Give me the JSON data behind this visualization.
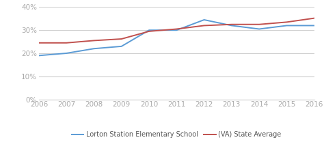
{
  "years": [
    2006,
    2007,
    2008,
    2009,
    2010,
    2011,
    2012,
    2013,
    2014,
    2015,
    2016
  ],
  "lorton": [
    0.19,
    0.2,
    0.22,
    0.23,
    0.3,
    0.3,
    0.345,
    0.32,
    0.305,
    0.32,
    0.32
  ],
  "state": [
    0.245,
    0.245,
    0.255,
    0.262,
    0.295,
    0.305,
    0.32,
    0.325,
    0.325,
    0.335,
    0.352
  ],
  "lorton_color": "#5b9bd5",
  "state_color": "#c0504d",
  "lorton_label": "Lorton Station Elementary School",
  "state_label": "(VA) State Average",
  "ylim": [
    0,
    0.4
  ],
  "yticks": [
    0,
    0.1,
    0.2,
    0.3,
    0.4
  ],
  "bg_color": "#ffffff",
  "grid_color": "#d0d0d0",
  "tick_color": "#aaaaaa",
  "line_width": 1.4,
  "legend_fontsize": 7.0,
  "tick_fontsize": 7.5
}
